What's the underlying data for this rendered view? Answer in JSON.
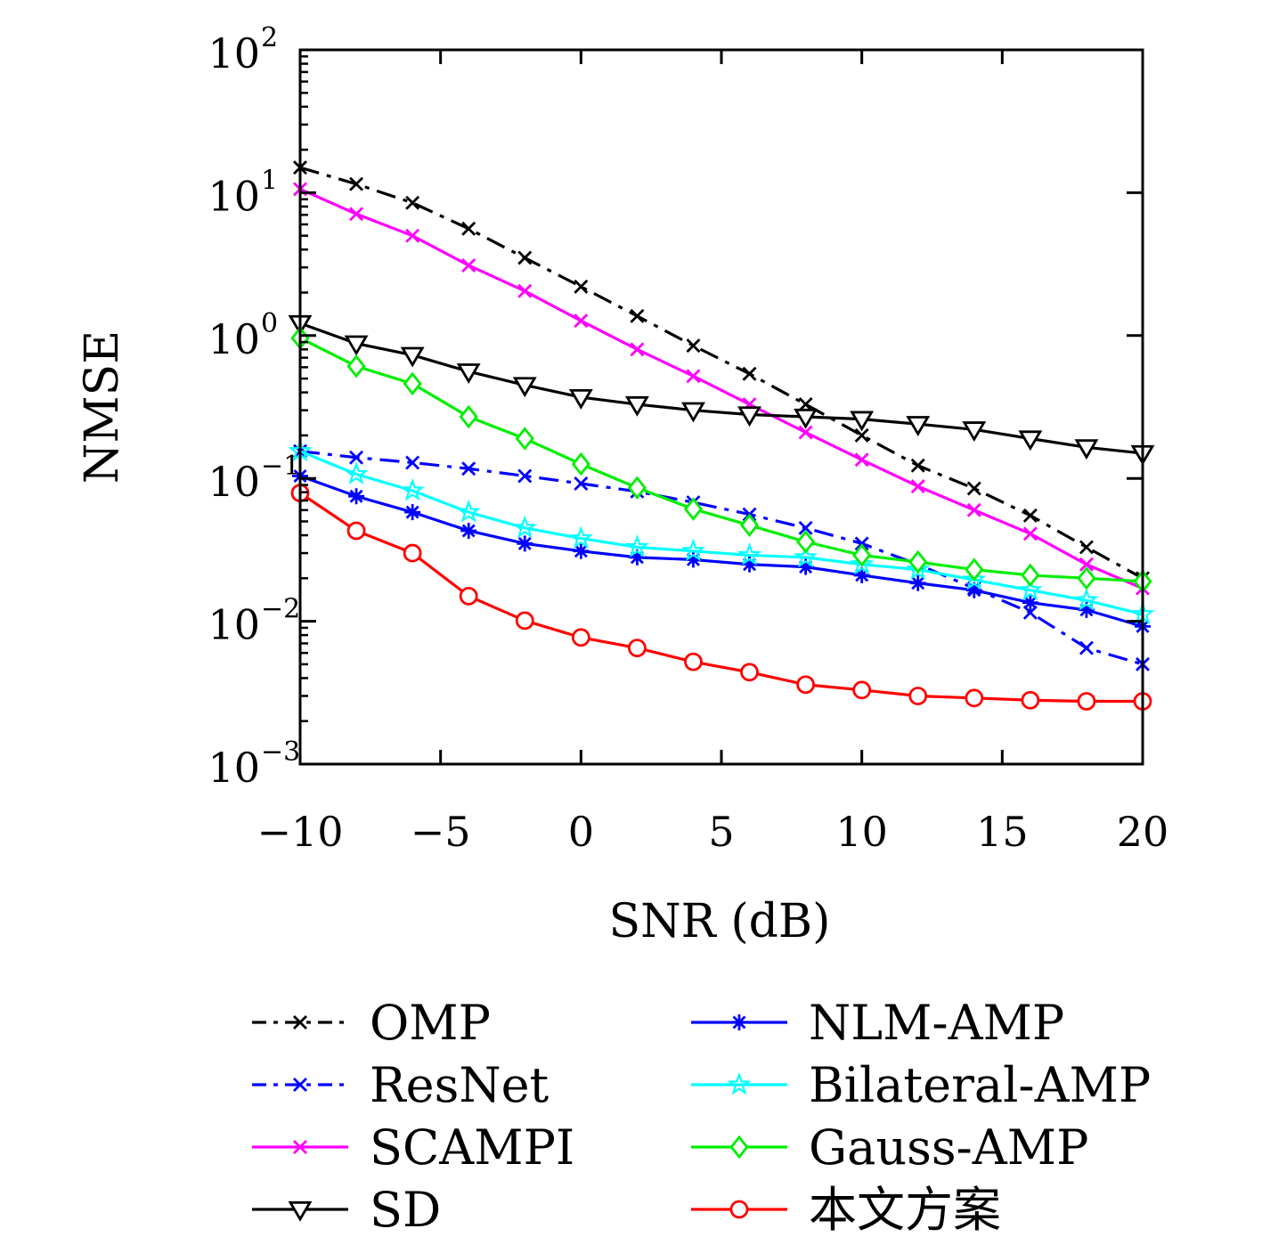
{
  "chart_data": {
    "type": "line",
    "xlabel": "SNR (dB)",
    "ylabel": "NMSE",
    "xlim": [
      -10,
      20
    ],
    "ylim": [
      0.001,
      100
    ],
    "yscale": "log",
    "grid": false,
    "legend_position": "bottom",
    "x": [
      -10,
      -8,
      -6,
      -4,
      -2,
      0,
      2,
      4,
      6,
      8,
      10,
      12,
      14,
      16,
      18,
      20
    ],
    "x_ticks": [
      {
        "value": -10,
        "label": "−10"
      },
      {
        "value": -5,
        "label": "−5"
      },
      {
        "value": 0,
        "label": "0"
      },
      {
        "value": 5,
        "label": "5"
      },
      {
        "value": 10,
        "label": "10"
      },
      {
        "value": 15,
        "label": "15"
      },
      {
        "value": 20,
        "label": "20"
      }
    ],
    "y_ticks": [
      {
        "value": 100,
        "base": "10",
        "exp": "2"
      },
      {
        "value": 10,
        "base": "10",
        "exp": "1"
      },
      {
        "value": 1,
        "base": "10",
        "exp": "0"
      },
      {
        "value": 0.1,
        "base": "10",
        "exp": "−1"
      },
      {
        "value": 0.01,
        "base": "10",
        "exp": "−2"
      },
      {
        "value": 0.001,
        "base": "10",
        "exp": "−3"
      }
    ],
    "series": [
      {
        "name": "OMP",
        "color": "#000000",
        "dash": "dashdot",
        "marker": "x",
        "values": [
          15.0,
          11.5,
          8.5,
          5.6,
          3.5,
          2.2,
          1.37,
          0.85,
          0.54,
          0.33,
          0.2,
          0.123,
          0.085,
          0.055,
          0.033,
          0.02
        ]
      },
      {
        "name": "ResNet",
        "color": "#0000ff",
        "dash": "dashdot",
        "marker": "x",
        "values": [
          0.155,
          0.14,
          0.129,
          0.117,
          0.104,
          0.092,
          0.081,
          0.068,
          0.056,
          0.045,
          0.035,
          0.025,
          0.017,
          0.0115,
          0.0065,
          0.005
        ]
      },
      {
        "name": "SCAMPI",
        "color": "#ff00ff",
        "dash": "solid",
        "marker": "x",
        "values": [
          10.6,
          7.1,
          5.0,
          3.1,
          2.05,
          1.27,
          0.8,
          0.52,
          0.33,
          0.21,
          0.135,
          0.088,
          0.06,
          0.041,
          0.025,
          0.017
        ]
      },
      {
        "name": "SD",
        "color": "#000000",
        "dash": "solid",
        "marker": "triangle-down",
        "values": [
          1.22,
          0.88,
          0.73,
          0.56,
          0.45,
          0.37,
          0.33,
          0.3,
          0.28,
          0.27,
          0.26,
          0.24,
          0.22,
          0.19,
          0.165,
          0.15
        ]
      },
      {
        "name": "NLM-AMP",
        "color": "#0000ff",
        "dash": "solid",
        "marker": "asterisk",
        "values": [
          0.104,
          0.075,
          0.058,
          0.043,
          0.035,
          0.031,
          0.028,
          0.027,
          0.025,
          0.024,
          0.021,
          0.0185,
          0.0165,
          0.0135,
          0.012,
          0.0092
        ]
      },
      {
        "name": "Bilateral-AMP",
        "color": "#00ffff",
        "dash": "solid",
        "marker": "star",
        "values": [
          0.155,
          0.107,
          0.082,
          0.058,
          0.045,
          0.038,
          0.033,
          0.031,
          0.029,
          0.028,
          0.025,
          0.023,
          0.0195,
          0.0165,
          0.014,
          0.0112
        ]
      },
      {
        "name": "Gauss-AMP",
        "color": "#00ee00",
        "dash": "solid",
        "marker": "diamond",
        "values": [
          0.96,
          0.61,
          0.46,
          0.27,
          0.19,
          0.126,
          0.086,
          0.061,
          0.047,
          0.036,
          0.029,
          0.026,
          0.023,
          0.021,
          0.02,
          0.019
        ]
      },
      {
        "name": "本文方案",
        "color": "#ff0000",
        "dash": "solid",
        "marker": "circle",
        "values": [
          0.079,
          0.043,
          0.03,
          0.015,
          0.0101,
          0.0077,
          0.0065,
          0.0052,
          0.0044,
          0.0036,
          0.0033,
          0.003,
          0.0029,
          0.0028,
          0.00275,
          0.00275
        ]
      }
    ]
  }
}
